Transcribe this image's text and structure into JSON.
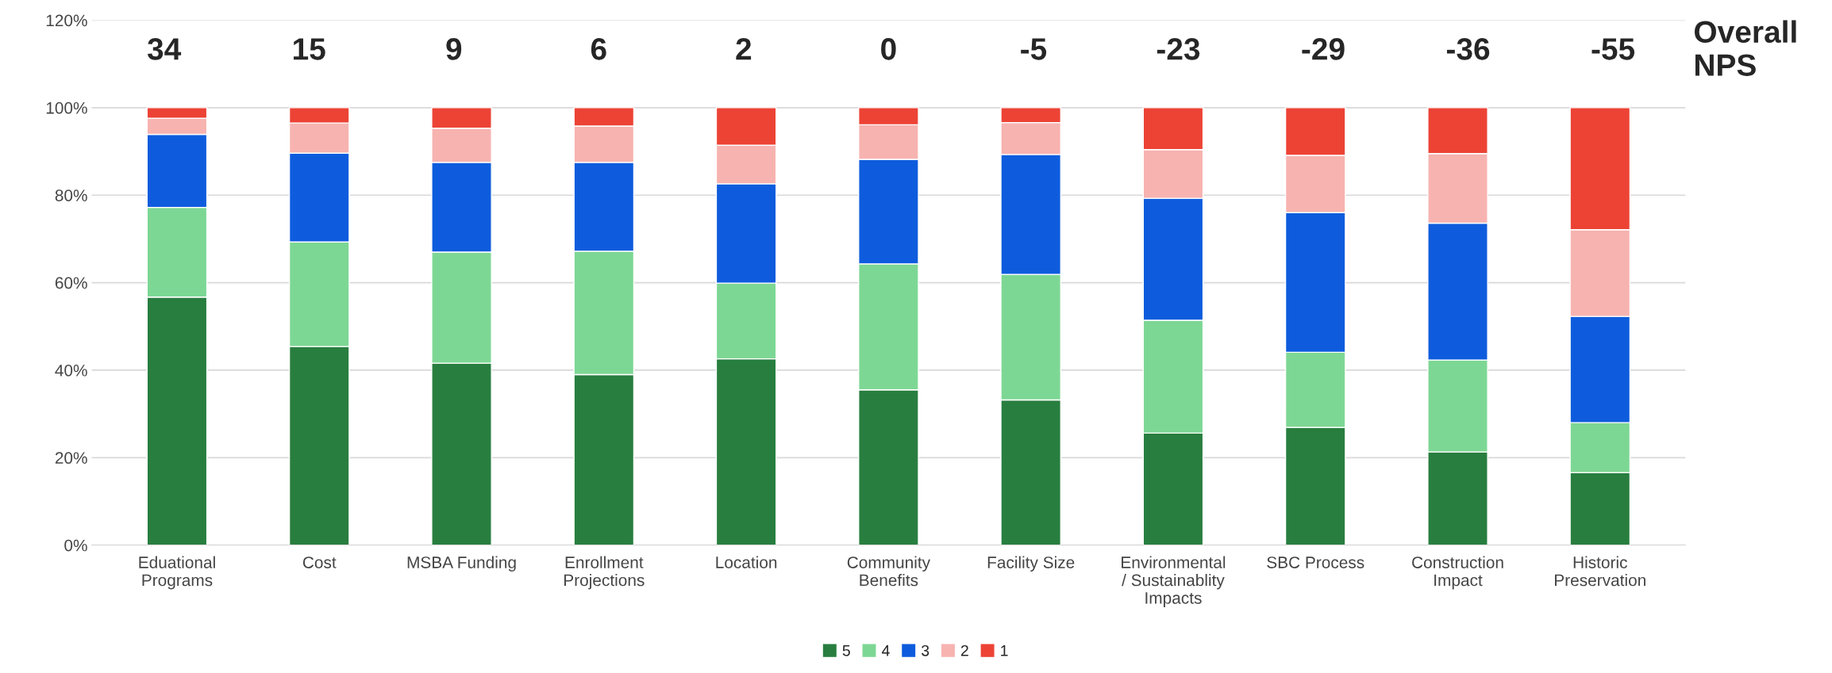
{
  "chart_data": {
    "type": "bar",
    "stacked": true,
    "categories": [
      "Eduational\nPrograms",
      "Cost",
      "MSBA Funding",
      "Enrollment\nProjections",
      "Location",
      "Community\nBenefits",
      "Facility Size",
      "Environmental\n/ Sustainablity\nImpacts",
      "SBC Process",
      "Construction\nImpact",
      "Historic\nPreservation"
    ],
    "series": [
      {
        "name": "5",
        "color": "#287e3f",
        "values": [
          56.7,
          45.4,
          41.6,
          39.0,
          42.6,
          35.5,
          33.2,
          25.6,
          26.9,
          21.3,
          16.6
        ]
      },
      {
        "name": "4",
        "color": "#7dd794",
        "values": [
          20.5,
          23.9,
          25.4,
          28.2,
          17.3,
          28.8,
          28.7,
          25.8,
          17.2,
          21.0,
          11.4
        ]
      },
      {
        "name": "3",
        "color": "#0e5cdd",
        "values": [
          16.7,
          20.3,
          20.5,
          20.3,
          22.7,
          23.9,
          27.4,
          27.9,
          31.9,
          31.3,
          24.3
        ]
      },
      {
        "name": "2",
        "color": "#f7b3b0",
        "values": [
          3.7,
          6.9,
          7.8,
          8.3,
          8.8,
          7.9,
          7.3,
          11.1,
          13.1,
          15.9,
          19.8
        ]
      },
      {
        "name": "1",
        "color": "#ec4335",
        "values": [
          2.4,
          3.5,
          4.7,
          4.2,
          8.6,
          3.9,
          3.4,
          9.6,
          10.9,
          10.5,
          27.9
        ]
      }
    ],
    "ylim": [
      0,
      120
    ],
    "yticks": [
      {
        "value": 0,
        "label": "0%"
      },
      {
        "value": 20,
        "label": "20%"
      },
      {
        "value": 40,
        "label": "40%"
      },
      {
        "value": 60,
        "label": "60%"
      },
      {
        "value": 80,
        "label": "80%"
      },
      {
        "value": 100,
        "label": "100%"
      },
      {
        "value": 120,
        "label": "120%"
      }
    ],
    "grid": "y",
    "legend": "bottom",
    "annotations": [
      "34",
      "15",
      "9",
      "6",
      "2",
      "0",
      "-5",
      "-23",
      "-29",
      "-36",
      "-55",
      "Overall\nNPS"
    ]
  }
}
